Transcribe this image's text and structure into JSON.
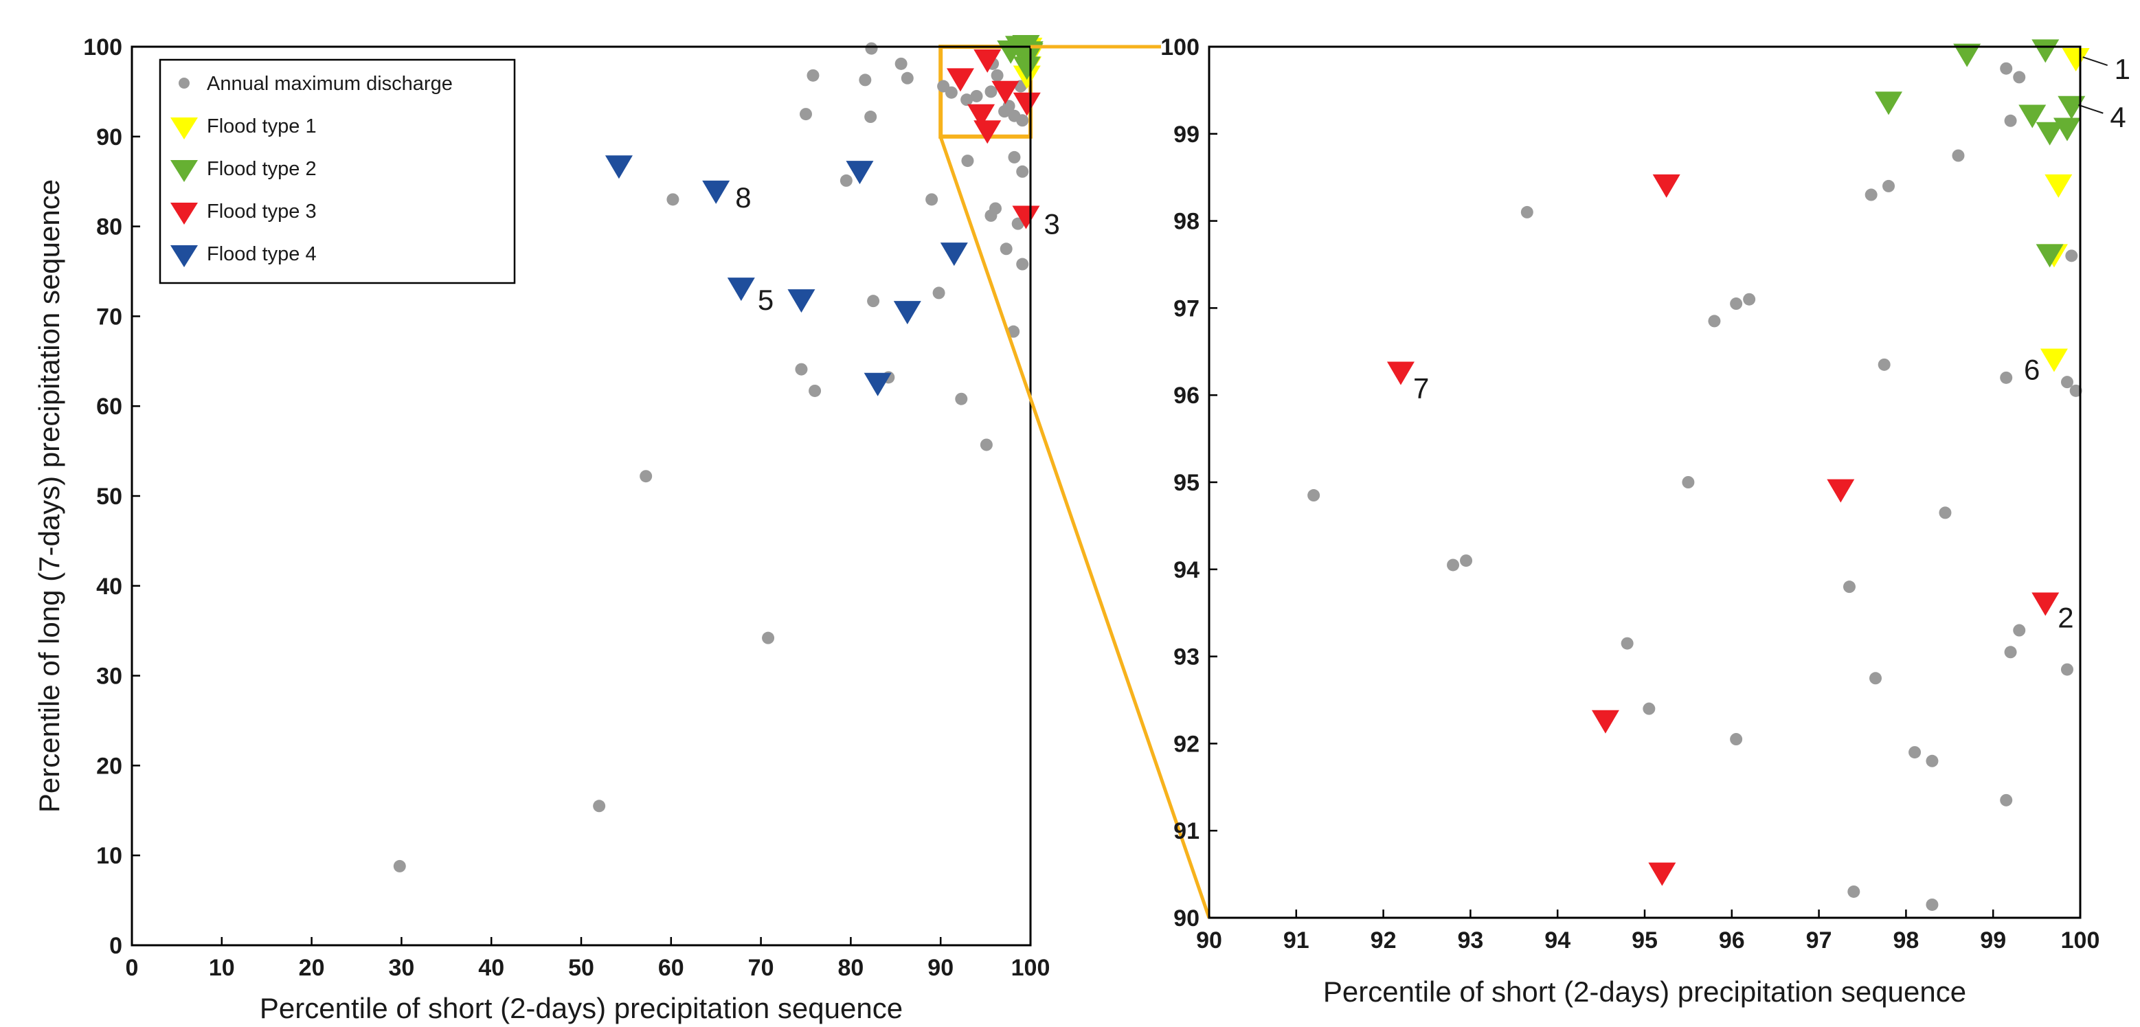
{
  "colors": {
    "annual": "#9a9a9a",
    "type1": "#ffff00",
    "type2": "#66b032",
    "type3": "#ed1c24",
    "type4": "#1f4e9c",
    "zoom": "#f7b21c"
  },
  "legend": {
    "annual": "Annual maximum discharge",
    "type1": "Flood type 1",
    "type2": "Flood type 2",
    "type3": "Flood type 3",
    "type4": "Flood type 4"
  },
  "chart_data": [
    {
      "type": "scatter",
      "title": "",
      "xlabel": "Percentile of short (2-days) precipitation sequence",
      "ylabel": "Percentile of long (7-days) precipitation sequence",
      "xlim": [
        0,
        100
      ],
      "ylim": [
        0,
        100
      ],
      "xticks": [
        "0",
        "10",
        "20",
        "30",
        "40",
        "50",
        "60",
        "70",
        "80",
        "90",
        "100"
      ],
      "yticks": [
        "0",
        "10",
        "20",
        "30",
        "40",
        "50",
        "60",
        "70",
        "80",
        "90",
        "100"
      ],
      "zoom_box": {
        "x": [
          90,
          100
        ],
        "y": [
          90,
          100
        ]
      },
      "series": [
        {
          "name": "Annual maximum discharge",
          "key": "annual",
          "marker": "circle",
          "points": [
            [
              29.8,
              8.8
            ],
            [
              52,
              15.5
            ],
            [
              57.2,
              52.2
            ],
            [
              70.8,
              34.2
            ],
            [
              60.2,
              83
            ],
            [
              74.5,
              64.1
            ],
            [
              76,
              61.7
            ],
            [
              75,
              92.5
            ],
            [
              75.8,
              96.8
            ],
            [
              82.3,
              99.8
            ],
            [
              81.6,
              96.3
            ],
            [
              82.2,
              92.2
            ],
            [
              85.6,
              98.1
            ],
            [
              86.3,
              96.5
            ],
            [
              79.5,
              85.1
            ],
            [
              82.5,
              71.7
            ],
            [
              84.2,
              63.2
            ],
            [
              89,
              83
            ],
            [
              89.8,
              72.6
            ],
            [
              92.3,
              60.8
            ],
            [
              95.1,
              55.7
            ],
            [
              98.1,
              68.3
            ],
            [
              97.3,
              77.5
            ],
            [
              98.6,
              80.3
            ],
            [
              95.6,
              81.2
            ],
            [
              96.1,
              82
            ],
            [
              99.1,
              75.8
            ],
            [
              98.2,
              87.7
            ],
            [
              99.1,
              86.1
            ],
            [
              93,
              87.3
            ],
            [
              90.3,
              95.6
            ],
            [
              91.2,
              94.9
            ],
            [
              92.9,
              94.1
            ],
            [
              94,
              94.5
            ],
            [
              95.6,
              95
            ],
            [
              96.3,
              96.8
            ],
            [
              95.8,
              98.1
            ],
            [
              97.1,
              92.8
            ],
            [
              97.6,
              93.4
            ],
            [
              98.2,
              92.3
            ],
            [
              99.1,
              91.8
            ],
            [
              98.9,
              95.6
            ],
            [
              99.3,
              97.2
            ]
          ]
        },
        {
          "name": "Flood type 1",
          "key": "type1",
          "marker": "triangle-down",
          "points": [
            [
              99.8,
              99.7
            ],
            [
              99.7,
              98.5
            ],
            [
              99.7,
              97.6
            ],
            [
              99.6,
              96.6
            ]
          ]
        },
        {
          "name": "Flood type 2",
          "key": "type2",
          "marker": "triangle-down",
          "points": [
            [
              98.7,
              99.9
            ],
            [
              99.5,
              100
            ],
            [
              97.8,
              99.4
            ],
            [
              99.5,
              99.2
            ],
            [
              99.6,
              99
            ],
            [
              99.9,
              99.3
            ],
            [
              99.9,
              99.1
            ],
            [
              99.6,
              97.6
            ]
          ]
        },
        {
          "name": "Flood type 3",
          "key": "type3",
          "marker": "triangle-down",
          "points": [
            [
              95.2,
              98.4
            ],
            [
              92.2,
              96.3
            ],
            [
              97.2,
              94.9
            ],
            [
              94.5,
              92.3
            ],
            [
              99.6,
              93.6
            ],
            [
              95.2,
              90.5
            ],
            [
              99.5,
              81
            ]
          ]
        },
        {
          "name": "Flood type 4",
          "key": "type4",
          "marker": "triangle-down",
          "points": [
            [
              54.2,
              86.6
            ],
            [
              65,
              83.8
            ],
            [
              81,
              86
            ],
            [
              91.5,
              76.9
            ],
            [
              67.8,
              73
            ],
            [
              74.5,
              71.7
            ],
            [
              86.3,
              70.4
            ],
            [
              83,
              62.4
            ]
          ]
        }
      ],
      "annotations": [
        {
          "text": "8",
          "x": 65,
          "y": 83.8
        },
        {
          "text": "3",
          "x": 99.5,
          "y": 81
        },
        {
          "text": "5",
          "x": 67.8,
          "y": 73
        }
      ]
    },
    {
      "type": "scatter",
      "title": "",
      "xlabel": "Percentile of short (2-days) precipitation sequence",
      "ylabel": "",
      "xlim": [
        90,
        100
      ],
      "ylim": [
        90,
        100
      ],
      "xticks": [
        "90",
        "91",
        "92",
        "93",
        "94",
        "95",
        "96",
        "97",
        "98",
        "99",
        "100"
      ],
      "yticks": [
        "90",
        "91",
        "92",
        "93",
        "94",
        "95",
        "96",
        "97",
        "98",
        "99",
        "100"
      ],
      "series": [
        {
          "name": "Annual maximum discharge",
          "key": "annual",
          "marker": "circle",
          "points": [
            [
              91.2,
              94.85
            ],
            [
              92.8,
              94.05
            ],
            [
              92.95,
              94.1
            ],
            [
              93.65,
              98.1
            ],
            [
              94.8,
              93.15
            ],
            [
              95.05,
              92.4
            ],
            [
              95.5,
              95
            ],
            [
              95.8,
              96.85
            ],
            [
              96.05,
              97.05
            ],
            [
              96.2,
              97.1
            ],
            [
              96.05,
              92.05
            ],
            [
              97.35,
              93.8
            ],
            [
              97.4,
              90.3
            ],
            [
              97.6,
              98.3
            ],
            [
              97.65,
              92.75
            ],
            [
              97.8,
              98.4
            ],
            [
              97.75,
              96.35
            ],
            [
              98.1,
              91.9
            ],
            [
              98.3,
              91.8
            ],
            [
              98.3,
              90.15
            ],
            [
              98.45,
              94.65
            ],
            [
              98.6,
              98.75
            ],
            [
              99.15,
              99.75
            ],
            [
              99.3,
              99.65
            ],
            [
              99.2,
              99.15
            ],
            [
              99.15,
              96.2
            ],
            [
              99.15,
              91.35
            ],
            [
              99.2,
              93.05
            ],
            [
              99.3,
              93.3
            ],
            [
              99.85,
              92.85
            ],
            [
              99.85,
              96.15
            ],
            [
              99.95,
              96.05
            ],
            [
              99.9,
              97.6
            ]
          ]
        },
        {
          "name": "Flood type 1",
          "key": "type1",
          "marker": "triangle-down",
          "points": [
            [
              99.95,
              99.85
            ],
            [
              99.75,
              98.4
            ],
            [
              99.7,
              97.6
            ],
            [
              99.7,
              96.4
            ]
          ]
        },
        {
          "name": "Flood type 2",
          "key": "type2",
          "marker": "triangle-down",
          "points": [
            [
              98.7,
              99.9
            ],
            [
              99.6,
              99.95
            ],
            [
              97.8,
              99.35
            ],
            [
              99.45,
              99.2
            ],
            [
              99.65,
              99
            ],
            [
              99.9,
              99.3
            ],
            [
              99.85,
              99.05
            ],
            [
              99.65,
              97.6
            ]
          ]
        },
        {
          "name": "Flood type 3",
          "key": "type3",
          "marker": "triangle-down",
          "points": [
            [
              95.25,
              98.4
            ],
            [
              92.2,
              96.25
            ],
            [
              97.25,
              94.9
            ],
            [
              94.55,
              92.25
            ],
            [
              99.6,
              93.6
            ],
            [
              95.2,
              90.5
            ]
          ]
        }
      ],
      "annotations": [
        {
          "text": "1",
          "x": 99.95,
          "y": 99.85
        },
        {
          "text": "4",
          "x": 99.9,
          "y": 99.3
        },
        {
          "text": "6",
          "x": 99.7,
          "y": 96.4
        },
        {
          "text": "7",
          "x": 92.2,
          "y": 96.25
        },
        {
          "text": "2",
          "x": 99.6,
          "y": 93.6
        }
      ]
    }
  ]
}
